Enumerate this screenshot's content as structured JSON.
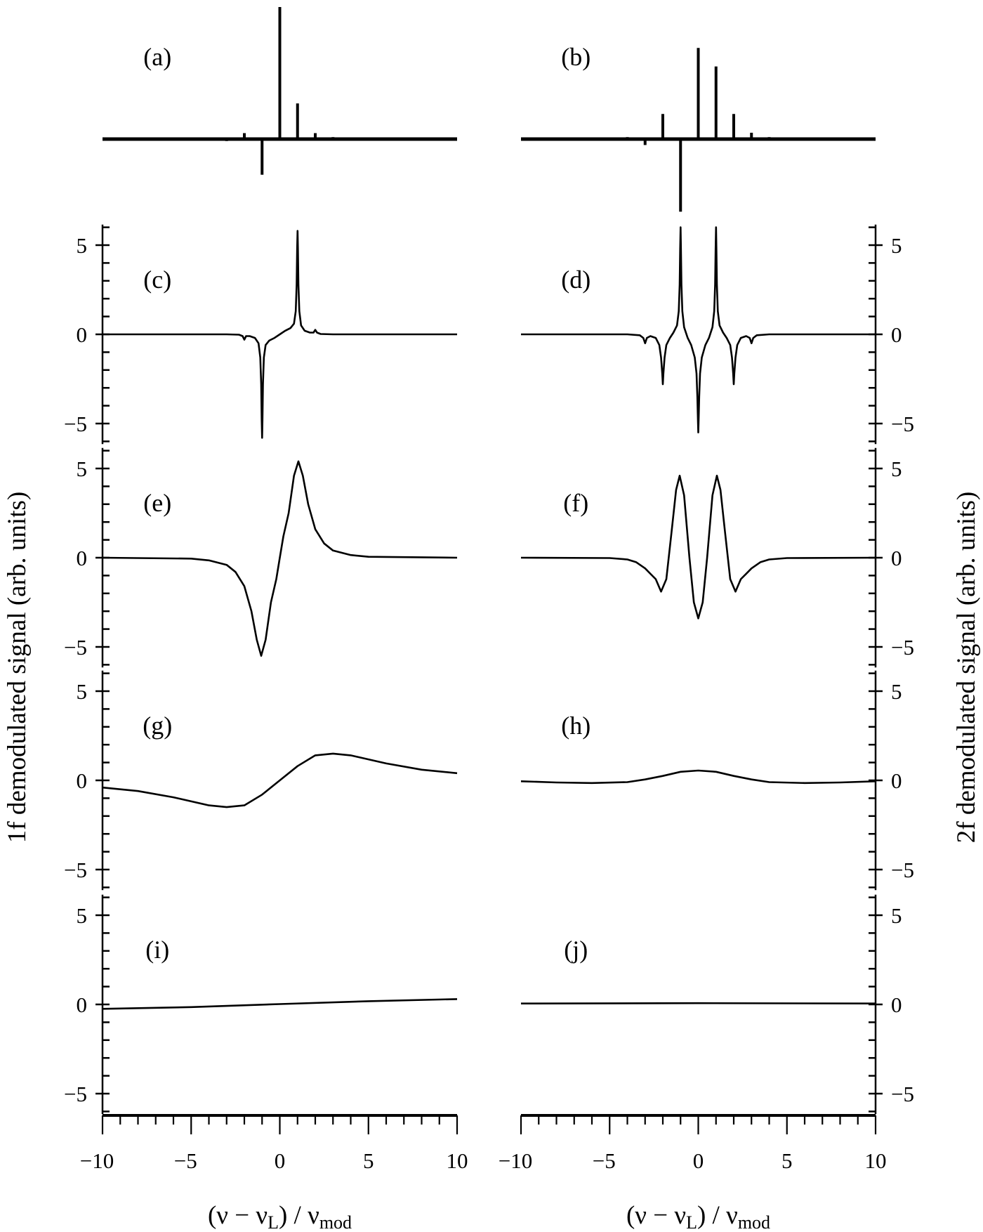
{
  "figure": {
    "ylabel_left": "1f demodulated signal (arb. units)",
    "ylabel_right": "2f demodulated signal (arb. units)",
    "xlabel": {
      "open": "(ν − ν",
      "sub1": "L",
      "mid": ") / ν",
      "sub2": "mod"
    },
    "x_tick_labels": [
      "−10",
      "−5",
      "0",
      "5",
      "10"
    ],
    "x_ticks": [
      -10,
      -5,
      0,
      5,
      10
    ],
    "y_tick_labels": [
      "5",
      "0",
      "−5"
    ],
    "y_ticks": [
      5,
      0,
      -5
    ],
    "xlim": [
      -10,
      10
    ],
    "ylim": [
      -6,
      6
    ],
    "line_color": "#000000"
  },
  "chart_data": [
    {
      "panel": "a",
      "label": "(a)",
      "type": "bar",
      "column": "left",
      "x": [
        -3,
        -2,
        -1,
        0,
        1,
        2,
        3
      ],
      "values": [
        -0.015,
        0.045,
        -0.27,
        1.0,
        0.27,
        0.045,
        0.015
      ]
    },
    {
      "panel": "b",
      "label": "(b)",
      "type": "bar",
      "column": "right",
      "x": [
        -4,
        -3,
        -2,
        -1,
        0,
        1,
        2,
        3,
        4
      ],
      "values": [
        0.015,
        -0.045,
        0.19,
        -0.55,
        0.69,
        0.55,
        0.19,
        0.048,
        0.015
      ]
    },
    {
      "panel": "c",
      "label": "(c)",
      "type": "line",
      "column": "left",
      "x": [
        -10,
        -3,
        -2.3,
        -2.1,
        -2.0,
        -1.9,
        -1.7,
        -1.4,
        -1.2,
        -1.1,
        -1.05,
        -1.02,
        -1.0,
        -0.98,
        -0.95,
        -0.9,
        -0.8,
        -0.6,
        -0.3,
        0,
        0.3,
        0.6,
        0.8,
        0.9,
        0.95,
        0.98,
        1.0,
        1.02,
        1.05,
        1.1,
        1.2,
        1.4,
        1.7,
        1.9,
        2.0,
        2.1,
        2.3,
        3,
        10
      ],
      "y": [
        0,
        0,
        -0.02,
        -0.1,
        -0.3,
        -0.1,
        -0.1,
        -0.2,
        -0.5,
        -1.3,
        -2.8,
        -4.8,
        -5.8,
        -4.8,
        -2.8,
        -1.3,
        -0.6,
        -0.35,
        -0.2,
        0,
        0.2,
        0.35,
        0.6,
        1.3,
        2.8,
        4.8,
        5.8,
        4.8,
        2.8,
        1.3,
        0.5,
        0.2,
        0.1,
        0.1,
        0.25,
        0.1,
        0.02,
        0,
        0
      ]
    },
    {
      "panel": "d",
      "label": "(d)",
      "type": "line",
      "column": "right",
      "x": [
        -10,
        -4,
        -3.3,
        -3.1,
        -3,
        -2.9,
        -2.7,
        -2.4,
        -2.2,
        -2.1,
        -2.03,
        -2,
        -1.97,
        -1.9,
        -1.8,
        -1.6,
        -1.4,
        -1.2,
        -1.1,
        -1.05,
        -1.02,
        -1,
        -0.98,
        -0.95,
        -0.9,
        -0.8,
        -0.6,
        -0.4,
        -0.2,
        -0.1,
        -0.05,
        -0.02,
        0,
        0.02,
        0.05,
        0.1,
        0.2,
        0.4,
        0.6,
        0.8,
        0.9,
        0.95,
        0.98,
        1,
        1.02,
        1.05,
        1.1,
        1.2,
        1.4,
        1.6,
        1.8,
        1.9,
        1.97,
        2,
        2.03,
        2.1,
        2.2,
        2.4,
        2.7,
        2.9,
        3,
        3.1,
        3.3,
        4,
        10
      ],
      "y": [
        0,
        0,
        -0.05,
        -0.2,
        -0.5,
        -0.2,
        -0.1,
        -0.2,
        -0.6,
        -1.3,
        -2.2,
        -2.8,
        -2.2,
        -1.3,
        -0.6,
        -0.2,
        0.1,
        0.5,
        1.3,
        2.8,
        4.8,
        6.0,
        4.8,
        2.8,
        1.3,
        0.4,
        -0.2,
        -0.6,
        -1.3,
        -2.2,
        -3.5,
        -4.8,
        -5.5,
        -4.8,
        -3.5,
        -2.2,
        -1.3,
        -0.6,
        -0.2,
        0.4,
        1.3,
        2.8,
        4.8,
        6.0,
        4.8,
        2.8,
        1.3,
        0.5,
        0.1,
        -0.2,
        -0.6,
        -1.3,
        -2.2,
        -2.8,
        -2.2,
        -1.3,
        -0.6,
        -0.2,
        -0.1,
        -0.2,
        -0.5,
        -0.2,
        -0.05,
        0,
        0
      ]
    },
    {
      "panel": "e",
      "label": "(e)",
      "type": "line",
      "column": "left",
      "x": [
        -10,
        -5,
        -4,
        -3,
        -2.5,
        -2,
        -1.6,
        -1.3,
        -1.05,
        -0.8,
        -0.5,
        -0.2,
        0,
        0.2,
        0.5,
        0.8,
        1.05,
        1.3,
        1.6,
        2,
        2.5,
        3,
        4,
        5,
        10
      ],
      "y": [
        0,
        -0.05,
        -0.15,
        -0.4,
        -0.8,
        -1.6,
        -3.0,
        -4.6,
        -5.5,
        -4.6,
        -2.5,
        -1.2,
        0,
        1.2,
        2.5,
        4.6,
        5.4,
        4.6,
        3.0,
        1.6,
        0.8,
        0.4,
        0.15,
        0.05,
        0
      ]
    },
    {
      "panel": "f",
      "label": "(f)",
      "type": "line",
      "column": "right",
      "x": [
        -10,
        -5,
        -4,
        -3.5,
        -3,
        -2.7,
        -2.4,
        -2.1,
        -1.8,
        -1.5,
        -1.25,
        -1.05,
        -0.8,
        -0.5,
        -0.25,
        0,
        0.25,
        0.5,
        0.8,
        1.05,
        1.25,
        1.5,
        1.8,
        2.1,
        2.4,
        2.7,
        3,
        3.5,
        4,
        5,
        10
      ],
      "y": [
        0,
        -0.02,
        -0.1,
        -0.25,
        -0.6,
        -0.9,
        -1.2,
        -1.9,
        -1.2,
        1.5,
        3.8,
        4.6,
        3.5,
        0,
        -2.5,
        -3.4,
        -2.5,
        0,
        3.5,
        4.6,
        3.8,
        1.5,
        -1.2,
        -1.9,
        -1.2,
        -0.9,
        -0.6,
        -0.25,
        -0.1,
        -0.02,
        0
      ]
    },
    {
      "panel": "g",
      "label": "(g)",
      "type": "line",
      "column": "left",
      "x": [
        -10,
        -8,
        -6,
        -4,
        -3,
        -2,
        -1,
        0,
        1,
        2,
        3,
        4,
        6,
        8,
        10
      ],
      "y": [
        -0.4,
        -0.6,
        -0.95,
        -1.4,
        -1.5,
        -1.4,
        -0.8,
        0,
        0.8,
        1.4,
        1.5,
        1.4,
        0.95,
        0.6,
        0.4
      ]
    },
    {
      "panel": "h",
      "label": "(h)",
      "type": "line",
      "column": "right",
      "x": [
        -10,
        -8,
        -6,
        -4,
        -3,
        -2,
        -1,
        0,
        1,
        2,
        3,
        4,
        6,
        8,
        10
      ],
      "y": [
        -0.05,
        -0.12,
        -0.15,
        -0.1,
        0.05,
        0.25,
        0.48,
        0.55,
        0.48,
        0.25,
        0.05,
        -0.1,
        -0.15,
        -0.12,
        -0.05
      ]
    },
    {
      "panel": "i",
      "label": "(i)",
      "type": "line",
      "column": "left",
      "x": [
        -10,
        -5,
        0,
        5,
        10
      ],
      "y": [
        -0.25,
        -0.15,
        0.02,
        0.18,
        0.3
      ]
    },
    {
      "panel": "j",
      "label": "(j)",
      "type": "line",
      "column": "right",
      "x": [
        -10,
        0,
        10
      ],
      "y": [
        0.05,
        0.07,
        0.05
      ]
    }
  ]
}
